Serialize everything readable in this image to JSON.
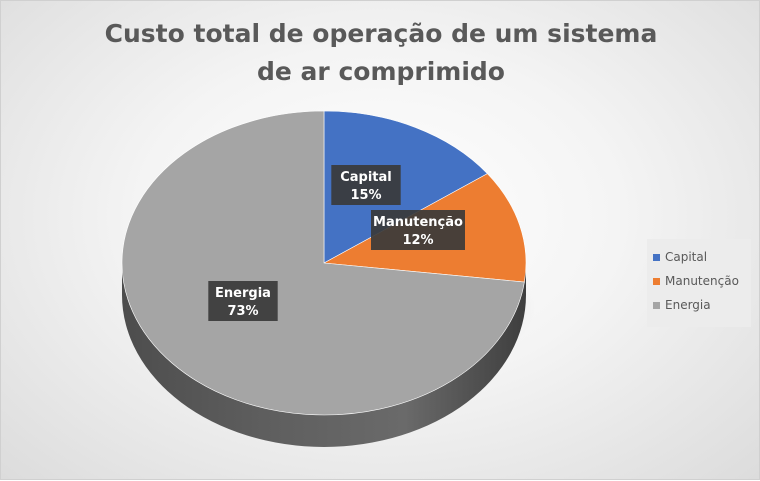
{
  "chart_data": {
    "type": "pie",
    "title": "Custo total de operação de um sistema de ar comprimido",
    "categories": [
      "Capital",
      "Manutenção",
      "Energia"
    ],
    "values": [
      15,
      12,
      73
    ],
    "value_suffix": "%",
    "colors": [
      "#4472C4",
      "#ED7D31",
      "#A5A5A5"
    ],
    "legend_position": "right",
    "style": "3d"
  }
}
